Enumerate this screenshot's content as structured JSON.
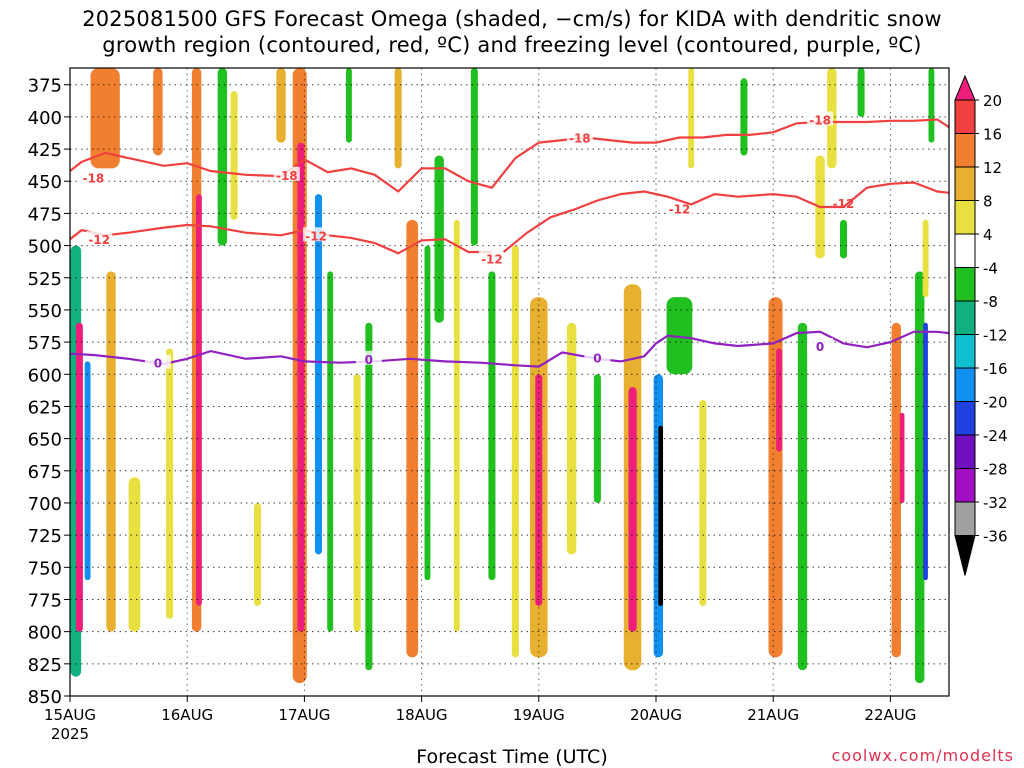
{
  "title_line1": "2025081500 GFS Forecast Omega (shaded, −cm/s) for KIDA with dendritic snow",
  "title_line2": "growth region (contoured, red, ºC) and freezing level (contoured, purple, ºC)",
  "xlabel": "Forecast Time (UTC)",
  "credit": "coolwx.com/modelts",
  "colors": {
    "dendritic_contour": "#f04040",
    "freezing_contour": "#9020c0",
    "ground": "#a0522d",
    "grid": "#000000"
  },
  "chart_data": {
    "type": "heatmap",
    "ylim": [
      850,
      362
    ],
    "y_ticks": [
      375,
      400,
      425,
      450,
      475,
      500,
      525,
      550,
      575,
      600,
      625,
      650,
      675,
      700,
      725,
      750,
      775,
      800,
      825,
      850
    ],
    "x_ticks": [
      "15AUG",
      "16AUG",
      "17AUG",
      "18AUG",
      "19AUG",
      "20AUG",
      "21AUG",
      "22AUG"
    ],
    "x_year": "2025",
    "colorbar": {
      "levels": [
        20,
        16,
        12,
        8,
        4,
        -4,
        -8,
        -12,
        -16,
        -20,
        -24,
        -28,
        -32,
        -36
      ],
      "colors": [
        "#ee1f7a",
        "#f04040",
        "#f08030",
        "#e8b030",
        "#e8e040",
        "#ffffff",
        "#20c020",
        "#10b080",
        "#10c0d0",
        "#1090f0",
        "#2040e0",
        "#7010c0",
        "#a010c0",
        "#a0a0a0",
        "#000000"
      ]
    },
    "omega_cells": [
      {
        "day": 0.05,
        "w": 0.09,
        "p0": 500,
        "p1": 835,
        "v": -12
      },
      {
        "day": 0.08,
        "w": 0.06,
        "p0": 560,
        "p1": 800,
        "v": 20
      },
      {
        "day": 0.15,
        "w": 0.05,
        "p0": 590,
        "p1": 760,
        "v": -20
      },
      {
        "day": 0.3,
        "w": 0.25,
        "p0": 362,
        "p1": 440,
        "v": 12
      },
      {
        "day": 0.35,
        "w": 0.08,
        "p0": 520,
        "p1": 800,
        "v": 8
      },
      {
        "day": 0.55,
        "w": 0.1,
        "p0": 680,
        "p1": 800,
        "v": 4
      },
      {
        "day": 0.75,
        "w": 0.08,
        "p0": 362,
        "p1": 430,
        "v": 12
      },
      {
        "day": 0.85,
        "w": 0.06,
        "p0": 580,
        "p1": 790,
        "v": 4
      },
      {
        "day": 1.08,
        "w": 0.08,
        "p0": 362,
        "p1": 800,
        "v": 12
      },
      {
        "day": 1.1,
        "w": 0.05,
        "p0": 460,
        "p1": 780,
        "v": 20
      },
      {
        "day": 1.3,
        "w": 0.08,
        "p0": 362,
        "p1": 500,
        "v": -8
      },
      {
        "day": 1.4,
        "w": 0.06,
        "p0": 380,
        "p1": 480,
        "v": 4
      },
      {
        "day": 1.6,
        "w": 0.06,
        "p0": 700,
        "p1": 780,
        "v": 4
      },
      {
        "day": 1.8,
        "w": 0.08,
        "p0": 362,
        "p1": 420,
        "v": 8
      },
      {
        "day": 1.96,
        "w": 0.12,
        "p0": 362,
        "p1": 840,
        "v": 12
      },
      {
        "day": 1.97,
        "w": 0.06,
        "p0": 420,
        "p1": 800,
        "v": 20
      },
      {
        "day": 2.12,
        "w": 0.06,
        "p0": 460,
        "p1": 740,
        "v": -20
      },
      {
        "day": 2.22,
        "w": 0.05,
        "p0": 520,
        "p1": 800,
        "v": -8
      },
      {
        "day": 2.38,
        "w": 0.05,
        "p0": 362,
        "p1": 420,
        "v": -8
      },
      {
        "day": 2.45,
        "w": 0.06,
        "p0": 600,
        "p1": 800,
        "v": 4
      },
      {
        "day": 2.55,
        "w": 0.06,
        "p0": 560,
        "p1": 830,
        "v": -8
      },
      {
        "day": 2.8,
        "w": 0.06,
        "p0": 362,
        "p1": 440,
        "v": 8
      },
      {
        "day": 2.92,
        "w": 0.1,
        "p0": 480,
        "p1": 820,
        "v": 12
      },
      {
        "day": 3.05,
        "w": 0.05,
        "p0": 500,
        "p1": 760,
        "v": -8
      },
      {
        "day": 3.15,
        "w": 0.08,
        "p0": 430,
        "p1": 560,
        "v": -8
      },
      {
        "day": 3.3,
        "w": 0.05,
        "p0": 480,
        "p1": 800,
        "v": 4
      },
      {
        "day": 3.45,
        "w": 0.06,
        "p0": 362,
        "p1": 500,
        "v": -8
      },
      {
        "day": 3.6,
        "w": 0.06,
        "p0": 520,
        "p1": 760,
        "v": -8
      },
      {
        "day": 3.8,
        "w": 0.06,
        "p0": 500,
        "p1": 820,
        "v": 4
      },
      {
        "day": 4.0,
        "w": 0.15,
        "p0": 540,
        "p1": 820,
        "v": 8
      },
      {
        "day": 4.0,
        "w": 0.06,
        "p0": 600,
        "p1": 780,
        "v": 20
      },
      {
        "day": 4.28,
        "w": 0.08,
        "p0": 560,
        "p1": 740,
        "v": 4
      },
      {
        "day": 4.5,
        "w": 0.06,
        "p0": 600,
        "p1": 700,
        "v": -8
      },
      {
        "day": 4.8,
        "w": 0.15,
        "p0": 530,
        "p1": 830,
        "v": 8
      },
      {
        "day": 4.8,
        "w": 0.07,
        "p0": 610,
        "p1": 800,
        "v": 20
      },
      {
        "day": 5.02,
        "w": 0.08,
        "p0": 600,
        "p1": 820,
        "v": -20
      },
      {
        "day": 5.04,
        "w": 0.04,
        "p0": 640,
        "p1": 780,
        "v": -36
      },
      {
        "day": 5.2,
        "w": 0.22,
        "p0": 540,
        "p1": 600,
        "v": -8
      },
      {
        "day": 5.3,
        "w": 0.05,
        "p0": 362,
        "p1": 440,
        "v": 4
      },
      {
        "day": 5.4,
        "w": 0.06,
        "p0": 620,
        "p1": 780,
        "v": 4
      },
      {
        "day": 5.75,
        "w": 0.06,
        "p0": 370,
        "p1": 430,
        "v": -8
      },
      {
        "day": 6.02,
        "w": 0.12,
        "p0": 540,
        "p1": 820,
        "v": 12
      },
      {
        "day": 6.05,
        "w": 0.05,
        "p0": 580,
        "p1": 660,
        "v": 20
      },
      {
        "day": 6.25,
        "w": 0.08,
        "p0": 560,
        "p1": 830,
        "v": -8
      },
      {
        "day": 6.4,
        "w": 0.08,
        "p0": 430,
        "p1": 510,
        "v": 4
      },
      {
        "day": 6.5,
        "w": 0.08,
        "p0": 362,
        "p1": 440,
        "v": 4
      },
      {
        "day": 6.6,
        "w": 0.06,
        "p0": 480,
        "p1": 510,
        "v": -8
      },
      {
        "day": 6.75,
        "w": 0.06,
        "p0": 362,
        "p1": 400,
        "v": -8
      },
      {
        "day": 7.05,
        "w": 0.08,
        "p0": 560,
        "p1": 820,
        "v": 12
      },
      {
        "day": 7.1,
        "w": 0.04,
        "p0": 630,
        "p1": 700,
        "v": 20
      },
      {
        "day": 7.25,
        "w": 0.08,
        "p0": 520,
        "p1": 840,
        "v": -8
      },
      {
        "day": 7.3,
        "w": 0.04,
        "p0": 560,
        "p1": 760,
        "v": -24
      },
      {
        "day": 7.35,
        "w": 0.05,
        "p0": 362,
        "p1": 420,
        "v": -8
      },
      {
        "day": 7.3,
        "w": 0.05,
        "p0": 480,
        "p1": 540,
        "v": 4
      }
    ],
    "contours": [
      {
        "label": "-18",
        "color": "dendritic",
        "label_at": [
          [
            0.2,
            447
          ],
          [
            1.85,
            445
          ],
          [
            4.35,
            416
          ],
          [
            6.4,
            402
          ]
        ],
        "x": [
          0,
          0.1,
          0.3,
          0.5,
          0.8,
          1.0,
          1.2,
          1.5,
          1.8,
          2.0,
          2.2,
          2.4,
          2.6,
          2.8,
          3.0,
          3.2,
          3.4,
          3.6,
          3.8,
          4.0,
          4.2,
          4.4,
          4.6,
          4.8,
          5.0,
          5.2,
          5.4,
          5.6,
          5.8,
          6.0,
          6.2,
          6.4,
          6.6,
          6.8,
          7.0,
          7.2,
          7.4,
          7.5
        ],
        "y": [
          442,
          435,
          428,
          432,
          438,
          436,
          442,
          445,
          446,
          433,
          443,
          440,
          445,
          458,
          440,
          440,
          450,
          455,
          432,
          420,
          418,
          416,
          418,
          420,
          420,
          416,
          416,
          414,
          414,
          412,
          405,
          404,
          404,
          404,
          403,
          403,
          402,
          408
        ]
      },
      {
        "label": "-12",
        "color": "dendritic",
        "label_at": [
          [
            0.25,
            495
          ],
          [
            2.1,
            492
          ],
          [
            3.6,
            510
          ],
          [
            5.2,
            471
          ],
          [
            6.6,
            467
          ]
        ],
        "x": [
          0,
          0.1,
          0.3,
          0.5,
          0.8,
          1.0,
          1.2,
          1.5,
          1.8,
          2.0,
          2.2,
          2.4,
          2.6,
          2.8,
          3.0,
          3.2,
          3.4,
          3.6
        ],
        "y": [
          495,
          488,
          492,
          490,
          486,
          484,
          485,
          490,
          492,
          488,
          492,
          494,
          498,
          506,
          496,
          495,
          505,
          505
        ]
      },
      {
        "label": "-12",
        "color": "dendritic",
        "label_at": [],
        "x": [
          3.7,
          3.9,
          4.1,
          4.3,
          4.5,
          4.7,
          4.9,
          5.1,
          5.3,
          5.5,
          5.7,
          6.0,
          6.2,
          6.4,
          6.6,
          6.8,
          7.0,
          7.2,
          7.4,
          7.5
        ],
        "y": [
          505,
          490,
          478,
          472,
          465,
          460,
          458,
          462,
          468,
          460,
          462,
          460,
          462,
          470,
          470,
          455,
          452,
          451,
          458,
          459
        ]
      },
      {
        "label": "0",
        "color": "freezing",
        "label_at": [
          [
            0.75,
            591
          ],
          [
            2.55,
            588
          ],
          [
            4.5,
            587
          ],
          [
            6.4,
            578
          ]
        ],
        "x": [
          0,
          0.2,
          0.5,
          0.8,
          1.0,
          1.2,
          1.5,
          1.8,
          2.0,
          2.3,
          2.6,
          2.9,
          3.2,
          3.5,
          3.8,
          4.0,
          4.2,
          4.5,
          4.7,
          4.9,
          5.0,
          5.1,
          5.3,
          5.5,
          5.7,
          6.0,
          6.2,
          6.4,
          6.6,
          6.8,
          7.0,
          7.2,
          7.4,
          7.5
        ],
        "y": [
          584,
          585,
          588,
          592,
          588,
          582,
          588,
          586,
          590,
          591,
          590,
          588,
          590,
          591,
          593,
          594,
          583,
          588,
          590,
          586,
          576,
          570,
          572,
          576,
          578,
          576,
          568,
          567,
          576,
          579,
          575,
          567,
          567,
          568
        ]
      }
    ]
  }
}
